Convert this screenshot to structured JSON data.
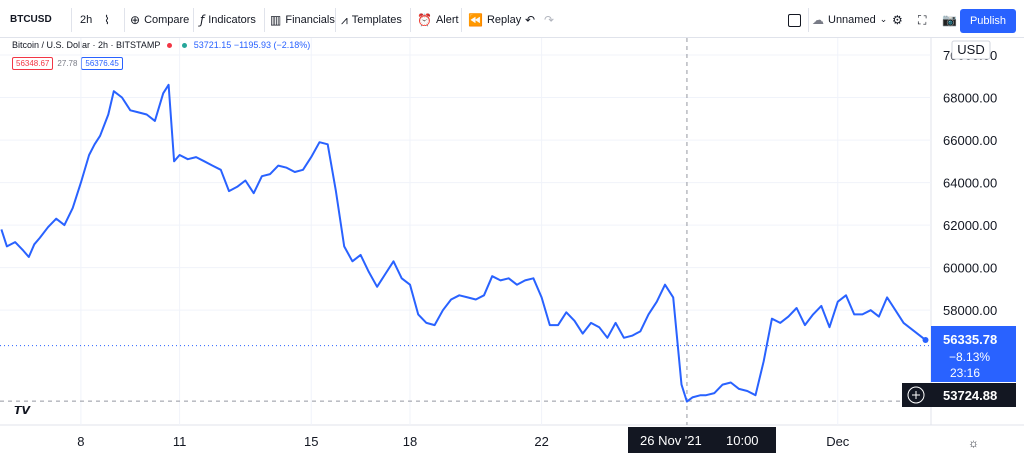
{
  "toolbar": {
    "symbol": "BTCUSD",
    "interval": "2h",
    "compare": "Compare",
    "indicators": "Indicators",
    "financials": "Financials",
    "templates": "Templates",
    "alert": "Alert",
    "replay": "Replay",
    "layout_name": "Unnamed",
    "publish": "Publish"
  },
  "legend": {
    "title": "Bitcoin / U.S. Dollar · 2h · BITSTAMP",
    "last_price": "53721.15",
    "change": "−1195.93 (−2.18%)",
    "bid": "56348.67",
    "spread": "27.78",
    "ask": "56376.45",
    "colors": {
      "line": "#2962ff",
      "down": "#f23645",
      "up": "#26a69a"
    }
  },
  "axis": {
    "currency": "USD",
    "crosshair_date": "26 Nov '21",
    "crosshair_time": "10:00",
    "crosshair_price": "53724.88",
    "last_price_label": "56335.78",
    "last_change_label": "−8.13%",
    "countdown": "23:16"
  },
  "chart_data": {
    "type": "line",
    "ylim": [
      52600,
      70800
    ],
    "yticks": [
      58000,
      60000,
      62000,
      64000,
      66000,
      68000,
      70000
    ],
    "ytick_labels": [
      "58000.00",
      "60000.00",
      "62000.00",
      "64000.00",
      "66000.00",
      "68000.00",
      "70000.00"
    ],
    "xlim": [
      "2021-11-05T13:00",
      "2021-12-03T20:00"
    ],
    "xticks": [
      {
        "label": "8",
        "x": "2021-11-08T00:00"
      },
      {
        "label": "11",
        "x": "2021-11-11T00:00"
      },
      {
        "label": "15",
        "x": "2021-11-15T00:00"
      },
      {
        "label": "18",
        "x": "2021-11-18T00:00"
      },
      {
        "label": "22",
        "x": "2021-11-22T00:00"
      },
      {
        "label": "Dec",
        "x": "2021-12-01T00:00"
      }
    ],
    "series": [
      {
        "x": [
          "2021-11-05T14:00",
          "2021-11-05T18:00",
          "2021-11-06T00:00",
          "2021-11-06T06:00",
          "2021-11-06T10:00",
          "2021-11-06T14:00",
          "2021-11-06T18:00",
          "2021-11-07T00:00",
          "2021-11-07T06:00",
          "2021-11-07T12:00",
          "2021-11-07T18:00",
          "2021-11-08T00:00",
          "2021-11-08T06:00",
          "2021-11-08T10:00",
          "2021-11-08T14:00",
          "2021-11-08T20:00",
          "2021-11-09T00:00",
          "2021-11-09T06:00",
          "2021-11-09T12:00",
          "2021-11-09T18:00",
          "2021-11-10T00:00",
          "2021-11-10T06:00",
          "2021-11-10T12:00",
          "2021-11-10T16:00",
          "2021-11-10T20:00",
          "2021-11-11T00:00",
          "2021-11-11T06:00",
          "2021-11-11T12:00",
          "2021-11-11T18:00",
          "2021-11-12T00:00",
          "2021-11-12T06:00",
          "2021-11-12T12:00",
          "2021-11-12T18:00",
          "2021-11-13T00:00",
          "2021-11-13T06:00",
          "2021-11-13T12:00",
          "2021-11-13T18:00",
          "2021-11-14T00:00",
          "2021-11-14T06:00",
          "2021-11-14T12:00",
          "2021-11-14T18:00",
          "2021-11-15T00:00",
          "2021-11-15T06:00",
          "2021-11-15T12:00",
          "2021-11-15T18:00",
          "2021-11-16T00:00",
          "2021-11-16T06:00",
          "2021-11-16T12:00",
          "2021-11-16T18:00",
          "2021-11-17T00:00",
          "2021-11-17T06:00",
          "2021-11-17T12:00",
          "2021-11-17T18:00",
          "2021-11-18T00:00",
          "2021-11-18T06:00",
          "2021-11-18T12:00",
          "2021-11-18T18:00",
          "2021-11-19T00:00",
          "2021-11-19T06:00",
          "2021-11-19T12:00",
          "2021-11-19T18:00",
          "2021-11-20T00:00",
          "2021-11-20T06:00",
          "2021-11-20T12:00",
          "2021-11-20T18:00",
          "2021-11-21T00:00",
          "2021-11-21T06:00",
          "2021-11-21T12:00",
          "2021-11-21T18:00",
          "2021-11-22T00:00",
          "2021-11-22T06:00",
          "2021-11-22T12:00",
          "2021-11-22T18:00",
          "2021-11-23T00:00",
          "2021-11-23T06:00",
          "2021-11-23T12:00",
          "2021-11-23T18:00",
          "2021-11-24T00:00",
          "2021-11-24T06:00",
          "2021-11-24T12:00",
          "2021-11-24T18:00",
          "2021-11-25T00:00",
          "2021-11-25T06:00",
          "2021-11-25T12:00",
          "2021-11-25T18:00",
          "2021-11-26T00:00",
          "2021-11-26T06:00",
          "2021-11-26T10:00",
          "2021-11-26T14:00",
          "2021-11-26T20:00",
          "2021-11-27T00:00",
          "2021-11-27T06:00",
          "2021-11-27T12:00",
          "2021-11-27T18:00",
          "2021-11-28T00:00",
          "2021-11-28T06:00",
          "2021-11-28T12:00",
          "2021-11-28T18:00",
          "2021-11-29T00:00",
          "2021-11-29T06:00",
          "2021-11-29T12:00",
          "2021-11-29T18:00",
          "2021-11-30T00:00",
          "2021-11-30T06:00",
          "2021-11-30T12:00",
          "2021-11-30T18:00",
          "2021-12-01T00:00",
          "2021-12-01T06:00",
          "2021-12-01T12:00",
          "2021-12-01T18:00",
          "2021-12-02T00:00",
          "2021-12-02T06:00",
          "2021-12-02T12:00",
          "2021-12-02T18:00",
          "2021-12-03T00:00",
          "2021-12-03T06:00",
          "2021-12-03T12:00",
          "2021-12-03T16:00"
        ],
        "values": [
          61800,
          61000,
          61200,
          60800,
          60500,
          61100,
          61400,
          61900,
          62300,
          62000,
          62800,
          64000,
          65300,
          65800,
          66200,
          67200,
          68300,
          68000,
          67400,
          67300,
          67200,
          66900,
          68200,
          68600,
          65000,
          65300,
          65100,
          65200,
          65000,
          64800,
          64600,
          63600,
          63800,
          64100,
          63500,
          64300,
          64400,
          64800,
          64700,
          64500,
          64600,
          65200,
          65900,
          65800,
          63600,
          61000,
          60300,
          60600,
          59800,
          59100,
          59700,
          60300,
          59500,
          59200,
          57800,
          57400,
          57300,
          58000,
          58500,
          58700,
          58600,
          58500,
          58700,
          59600,
          59400,
          59500,
          59200,
          59400,
          59500,
          58600,
          57300,
          57300,
          57900,
          57500,
          56900,
          57400,
          57200,
          56700,
          57400,
          56700,
          56800,
          57000,
          57800,
          58400,
          59200,
          58600,
          54500,
          53700,
          53900,
          54000,
          54000,
          54100,
          54500,
          54600,
          54300,
          54200,
          54000,
          55600,
          57600,
          57400,
          57700,
          58100,
          57300,
          57800,
          58200,
          57200,
          58400,
          58700,
          57800,
          57800,
          58000,
          57700,
          58600,
          58000,
          57400,
          57100,
          56800,
          56600
        ]
      }
    ]
  }
}
